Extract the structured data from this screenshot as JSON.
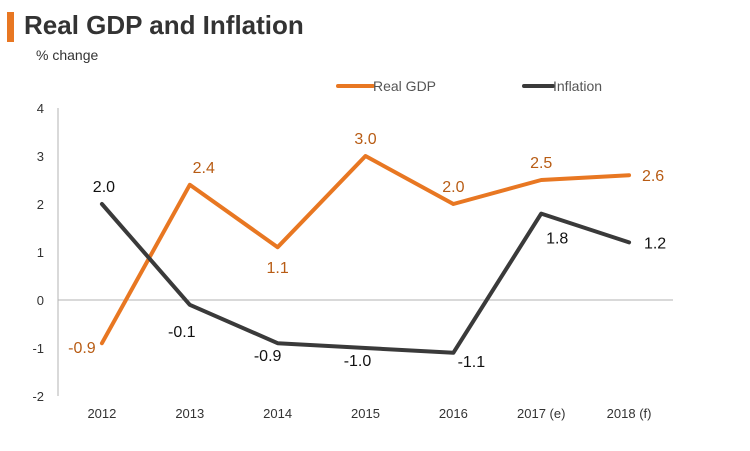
{
  "header": {
    "title": "Real GDP and Inflation",
    "subtitle": "% change"
  },
  "chart_data": {
    "type": "line",
    "title": "Real GDP and Inflation",
    "ylabel": "% change",
    "xlabel": "",
    "categories": [
      "2012",
      "2013",
      "2014",
      "2015",
      "2016",
      "2017 (e)",
      "2018 (f)"
    ],
    "yticks": [
      "4",
      "3",
      "2",
      "1",
      "0",
      "-1",
      "-2"
    ],
    "ylim": [
      -2,
      4
    ],
    "legend_position": "top-right",
    "series": [
      {
        "name": "Real GDP",
        "color": "#e87722",
        "values": [
          -0.9,
          2.4,
          1.1,
          3.0,
          2.0,
          2.5,
          2.6
        ],
        "labels": [
          "-0.9",
          "2.4",
          "1.1",
          "3.0",
          "2.0",
          "2.5",
          "2.6"
        ]
      },
      {
        "name": "Inflation",
        "color": "#3a3a3a",
        "values": [
          2.0,
          -0.1,
          -0.9,
          -1.0,
          -1.1,
          1.8,
          1.2
        ],
        "labels": [
          "2.0",
          "-0.1",
          "-0.9",
          "-1.0",
          "-1.1",
          "1.8",
          "1.2"
        ]
      }
    ]
  }
}
